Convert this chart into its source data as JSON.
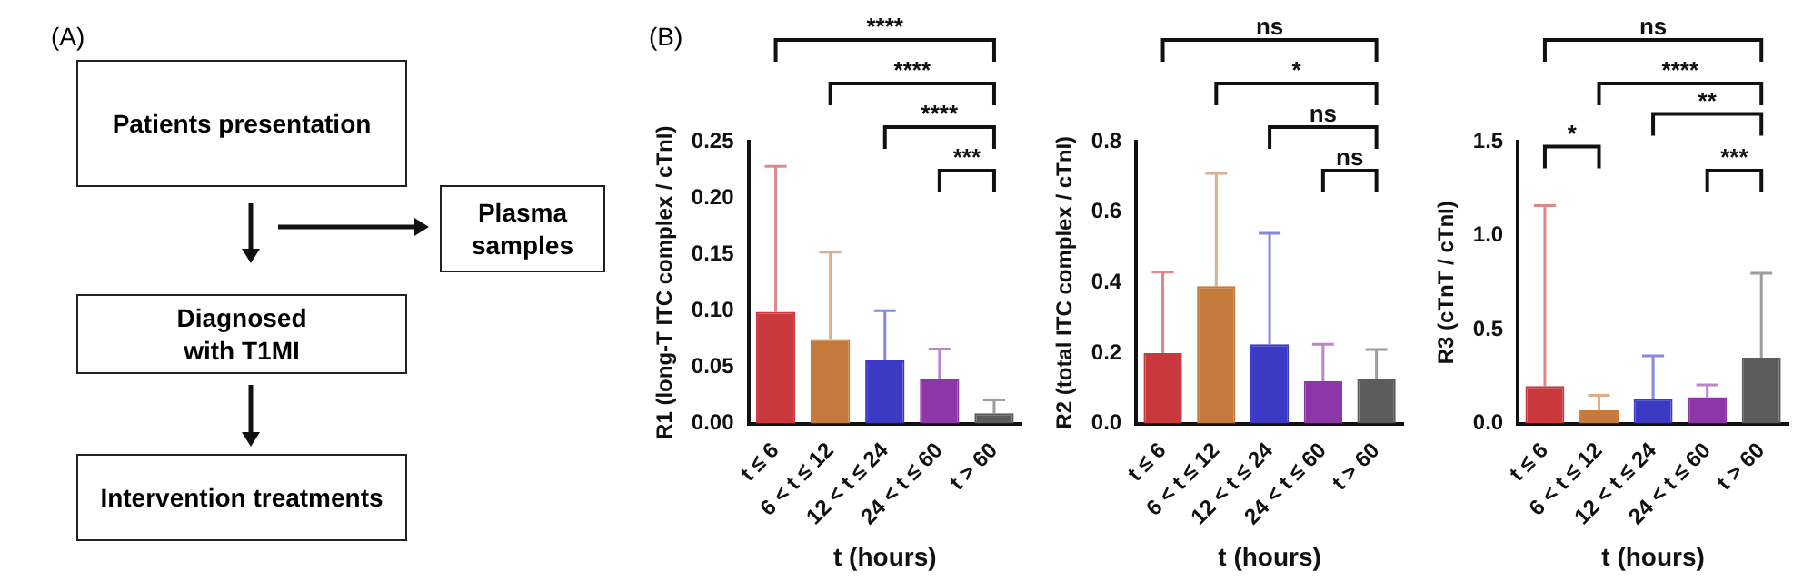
{
  "chart_data": [
    {
      "type": "other",
      "title": "(A)",
      "annotations": [
        "Patients presentation",
        "Plasma samples",
        "Diagnosed with T1MI",
        "Intervention treatments"
      ]
    },
    {
      "type": "bar",
      "title": "(B)",
      "xlabel": "t (hours)",
      "ylabel": "R1 (long-T ITC complex / cTnI)",
      "categories": [
        "t ≤ 6",
        "6 < t ≤ 12",
        "12 < t ≤ 24",
        "24 < t ≤ 60",
        "t > 60"
      ],
      "values": [
        0.099,
        0.075,
        0.056,
        0.039,
        0.009
      ],
      "colors": [
        "#c8383c",
        "#c47a3c",
        "#3a3ac4",
        "#8c36a8",
        "#5c5c5c"
      ],
      "errors": [
        [
          0.099,
          0.228
        ],
        [
          0.075,
          0.152
        ],
        [
          0.056,
          0.1
        ],
        [
          0.039,
          0.066
        ],
        [
          0.009,
          0.021
        ]
      ],
      "ylim": [
        0,
        0.25
      ],
      "yticks": [
        {
          "value": 0,
          "label": "0.00"
        },
        0.05,
        {
          "value": 0.1,
          "label": "0.10"
        },
        0.15,
        {
          "value": 0.2,
          "label": "0.20"
        },
        0.25
      ],
      "grid": false,
      "legend": false,
      "annotations": [
        "****",
        "****",
        "****",
        "***"
      ]
    },
    {
      "type": "bar",
      "xlabel": "t (hours)",
      "ylabel": "R2 (total ITC complex / cTnI)",
      "categories": [
        "t ≤ 6",
        "6 < t ≤ 12",
        "12 < t ≤ 24",
        "24 < t ≤ 60",
        "t > 60"
      ],
      "values": [
        0.2,
        0.39,
        0.225,
        0.12,
        0.125
      ],
      "colors": [
        "#c8383c",
        "#c47a3c",
        "#3a3ac4",
        "#8c36a8",
        "#5c5c5c"
      ],
      "errors": [
        [
          0.2,
          0.43
        ],
        [
          0.39,
          0.71
        ],
        [
          0.225,
          0.54
        ],
        [
          0.12,
          0.225
        ],
        [
          0.125,
          0.21
        ]
      ],
      "ylim": [
        0,
        0.8
      ],
      "yticks": [
        {
          "value": 0,
          "label": "0.0"
        },
        0.2,
        0.4,
        0.6,
        0.8
      ],
      "grid": false,
      "legend": false,
      "annotations": [
        "ns",
        "*",
        "ns",
        "ns"
      ]
    },
    {
      "type": "bar",
      "xlabel": "t (hours)",
      "ylabel": "R3 (cTnT / cTnI)",
      "categories": [
        "t ≤ 6",
        "6 < t ≤ 12",
        "12 < t ≤ 24",
        "24 < t ≤ 60",
        "t > 60"
      ],
      "values": [
        0.2,
        0.07,
        0.13,
        0.14,
        0.35
      ],
      "colors": [
        "#c8383c",
        "#c47a3c",
        "#3a3ac4",
        "#8c36a8",
        "#5c5c5c"
      ],
      "errors": [
        [
          0.2,
          1.16
        ],
        [
          0.07,
          0.15
        ],
        [
          0.13,
          0.36
        ],
        [
          0.14,
          0.205
        ],
        [
          0.35,
          0.8
        ]
      ],
      "ylim": [
        0,
        1.5
      ],
      "yticks": [
        {
          "value": 0,
          "label": "0.0"
        },
        0.5,
        {
          "value": 1,
          "label": "1.0"
        },
        1.5
      ],
      "grid": false,
      "legend": false,
      "annotations": [
        "ns",
        "****",
        "*",
        "**",
        "***"
      ]
    }
  ]
}
